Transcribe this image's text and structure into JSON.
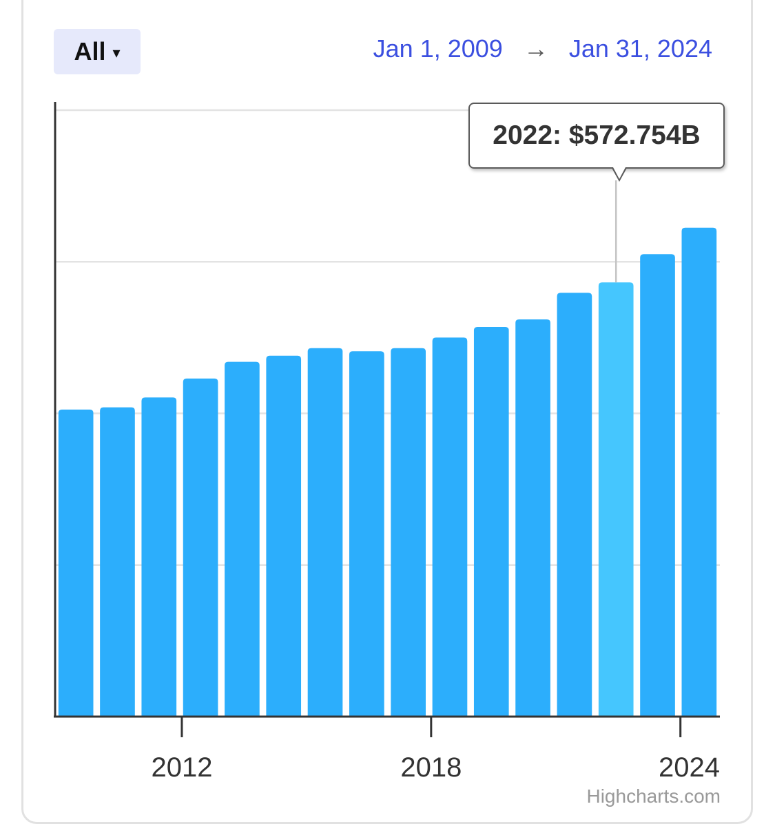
{
  "controls": {
    "range_label": "All",
    "range_caret": "▾",
    "date_from": "Jan 1, 2009",
    "date_arrow": "→",
    "date_to": "Jan 31, 2024"
  },
  "tooltip": {
    "text": "2022: $572.754B"
  },
  "credits": "Highcharts.com",
  "colors": {
    "bar": "#2caefc",
    "bar_highlight": "#45c6fe",
    "grid": "#e3e3e3",
    "axis": "#333333"
  },
  "chart_data": {
    "type": "bar",
    "title": "",
    "xlabel": "",
    "ylabel": "",
    "x": [
      2009,
      2010,
      2011,
      2012,
      2013,
      2014,
      2015,
      2016,
      2017,
      2018,
      2019,
      2020,
      2021,
      2022,
      2023,
      2024
    ],
    "values": [
      405,
      408,
      421,
      446,
      468,
      476,
      486,
      482,
      486,
      500,
      514,
      524,
      559,
      572.754,
      610,
      645
    ],
    "highlight_index": 13,
    "x_ticks": [
      2012,
      2018,
      2024
    ],
    "ylim": [
      0,
      800
    ],
    "grid": true,
    "legend": "none"
  }
}
